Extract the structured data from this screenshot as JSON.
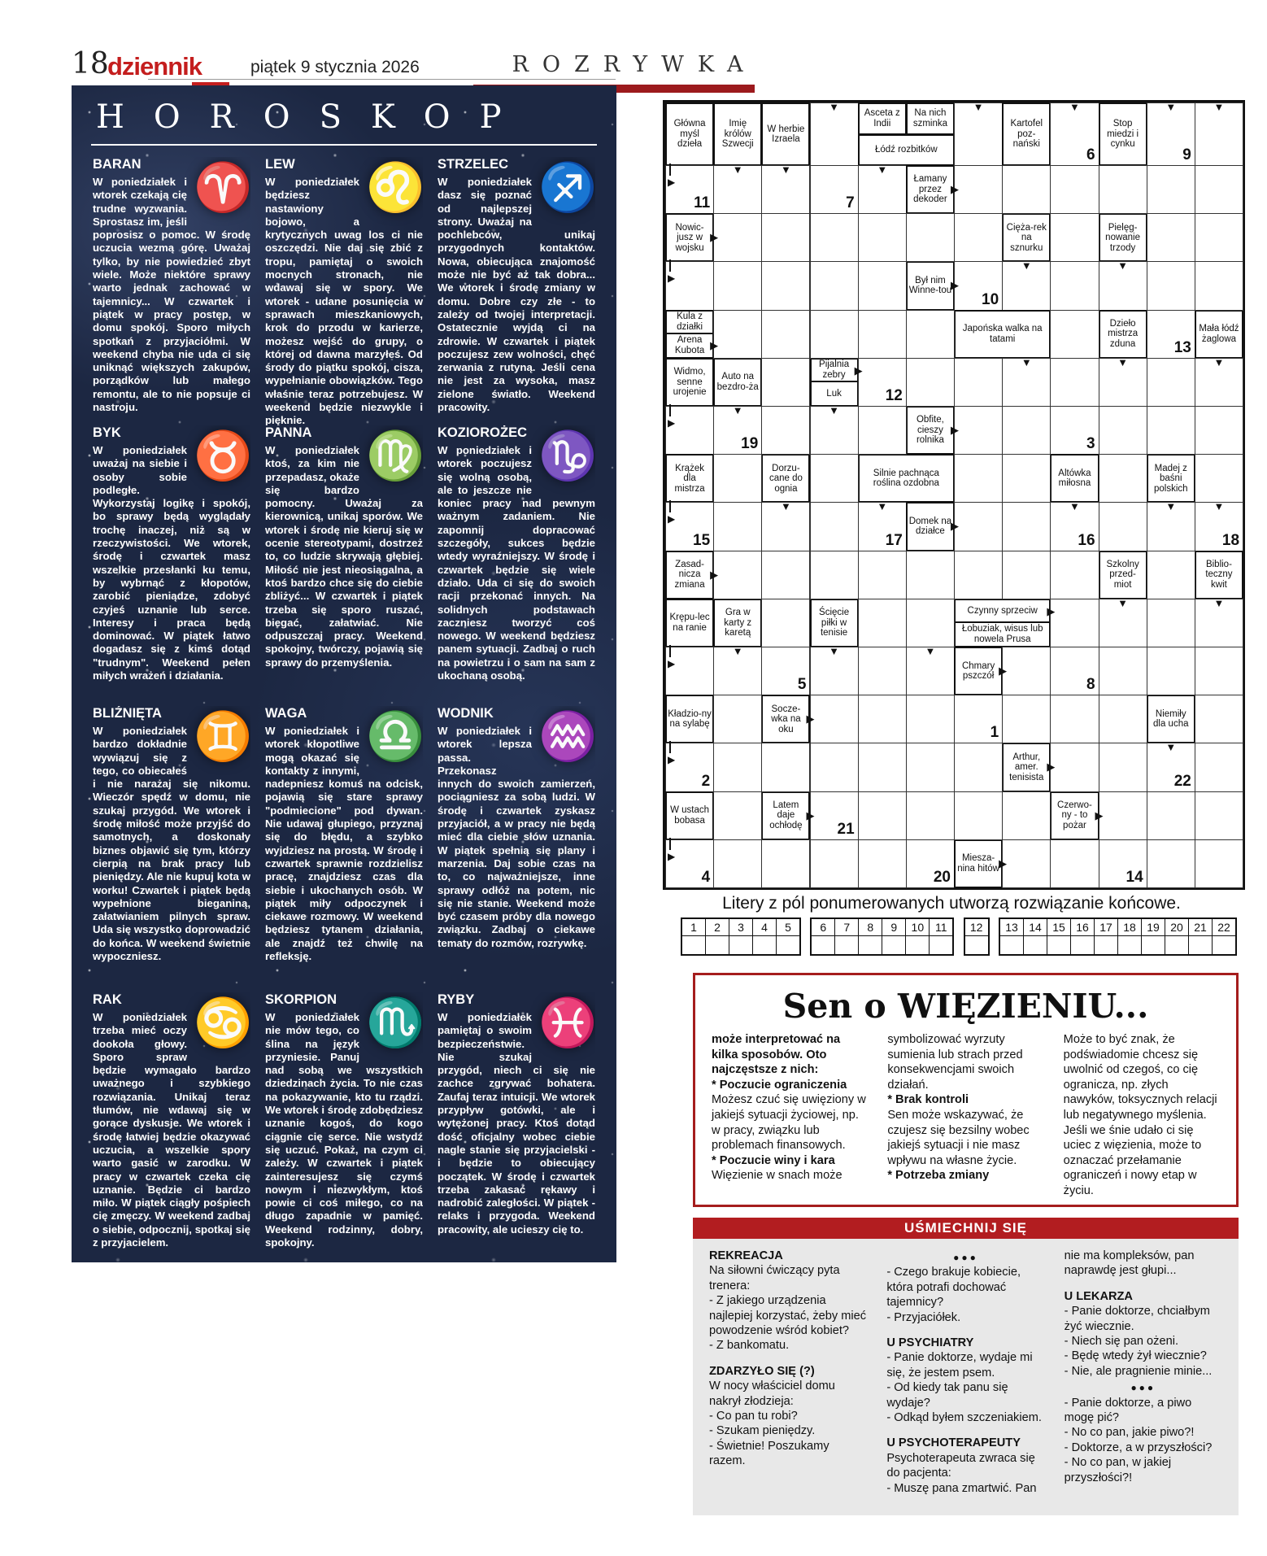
{
  "colors": {
    "accent_red": "#c41e1e",
    "bar_dark_red": "#9c1a1d",
    "jokes_red": "#b21d20",
    "panel_navy": "#1c2742",
    "zodiac_red": "#d93a2f",
    "zodiac_orange": "#f0932e",
    "zodiac_green": "#7fc341",
    "zodiac_blue": "#3fa8e0"
  },
  "header": {
    "page_number": "18",
    "logo": "dziennik",
    "date": "piątek 9 stycznia 2026",
    "section": "ROZRYWKA"
  },
  "horoskop": {
    "title": "HOROSKOP",
    "entries": [
      {
        "name": "BARAN",
        "glyph": "♈",
        "color": "#d93a2f",
        "text": "W poniedziałek i wtorek czekają cię trudne wyzwania. Sprostasz im, jeśli poprosisz o pomoc. W środę uczucia wezmą górę. Uważaj tylko, by nie powiedzieć zbyt wiele. Może niektóre sprawy warto jednak zachować w tajemnicy... W czwartek i piątek w pracy postęp, w domu spokój. Sporo miłych spotkań z przyjaciółmi. W weekend chyba nie uda ci się uniknąć większych zakupów, porządków lub małego remontu, ale to nie popsuje ci nastroju."
      },
      {
        "name": "LEW",
        "glyph": "♌",
        "color": "#d93a2f",
        "text": "W poniedziałek będziesz nastawiony bojowo, a krytycznych uwag los ci nie oszczędzi. Nie daj się zbić z tropu, pamiętaj o swoich mocnych stronach, nie wdawaj się w spory. We wtorek - udane posunięcia w sprawach mieszkaniowych, krok do przodu w karierze, możesz wejść do grupy, o której od dawna marzyłeś. Od środy do piątku spokój, cisza, wypełnianie obowiązków. Tego właśnie teraz potrzebujesz. W weekend będzie niezwykle i pięknie."
      },
      {
        "name": "STRZELEC",
        "glyph": "♐",
        "color": "#d93a2f",
        "text": "W poniedziałek dasz się poznać od najlepszej strony. Uważaj na pochlebców, unikaj przygodnych kontaktów. Nowa, obiecująca znajomość może nie być aż tak dobra... We wtorek i środę zmiany w domu. Dobre czy złe - to zależy od twojej interpretacji. Ostatecznie wyjdą ci na zdrowie. W czwartek i piątek poczujesz zew wolności, chęć zerwania z rutyną. Jeśli cena nie jest za wysoka, masz zielone światło. Weekend pracowity."
      },
      {
        "name": "BYK",
        "glyph": "♉",
        "color": "#f0932e",
        "text": "W poniedziałek uważaj na siebie i osoby sobie podległe. Wykorzystaj logikę i spokój, bo sprawy będą wyglądały trochę inaczej, niż są w rzeczywistości. We wtorek, środę i czwartek masz wszelkie przesłanki ku temu, by wybrnąć z kłopotów, zarobić pieniądze, zdobyć czyjeś uznanie lub serce. Interesy i praca będą dominować. W piątek łatwo dogadasz się z kimś dotąd \"trudnym\". Weekend pełen miłych wrażeń i działania."
      },
      {
        "name": "PANNA",
        "glyph": "♍",
        "color": "#f0932e",
        "text": "W poniedziałek ktoś, za kim nie przepadasz, okaże się bardzo pomocny. Uważaj za kierownicą, unikaj sporów. We wtorek i środę nie kieruj się w ocenie stereotypami, dostrzeż to, co ludzie skrywają głębiej. Miłość nie jest nieosiągalna, a ktoś bardzo chce się do ciebie zbliżyć... W czwartek i piątek trzeba się sporo ruszać, biegać, załatwiać. Nie odpuszczaj pracy. Weekend spokojny, twórczy, pojawią się sprawy do przemyślenia."
      },
      {
        "name": "KOZIOROŻEC",
        "glyph": "♑",
        "color": "#f0932e",
        "text": "W poniedziałek i wtorek poczujesz się wolną osobą, ale to jeszcze nie koniec pracy nad pewnym ważnym zadaniem. Nie zapomnij dopracować szczegóły, sukces będzie wtedy wyraźniejszy. W środę i czwartek będzie się wiele działo. Uda ci się do swoich racji przekonać innych. Na solidnych podstawach zaczniesz tworzyć coś nowego. W weekend będziesz panem sytuacji. Zadbaj o ruch na powietrzu i o sam na sam z ukochaną osobą."
      },
      {
        "name": "BLIŹNIĘTA",
        "glyph": "♊",
        "color": "#7fc341",
        "text": "W poniedziałek bardzo dokładnie wywiązuj się z tego, co obiecałeś i nie narażaj się nikomu. Wieczór spędź w domu, nie szukaj przygód. We wtorek i środę miłość może przyjść do samotnych, a doskonały biznes objawić się tym, którzy cierpią na brak pracy lub pieniędzy. Ale nie kupuj kota w worku! Czwartek i piątek będą wypełnione bieganiną, załatwianiem pilnych spraw. Uda się wszystko doprowadzić do końca. W weekend świetnie wypoczniesz."
      },
      {
        "name": "WAGA",
        "glyph": "♎",
        "color": "#7fc341",
        "text": "W poniedziałek i wtorek kłopotliwe mogą okazać się kontakty z innymi, nadepniesz komuś na odcisk, pojawią się stare sprawy \"podmiecione\" pod dywan. Nie udawaj głupiego, przyznaj się do błędu, a szybko wyjdziesz na prostą. W środę i czwartek sprawnie rozdzielisz pracę, znajdziesz czas dla siebie i ukochanych osób. W piątek miły odpoczynek i ciekawe rozmowy. W weekend będziesz tytanem działania, ale znajdź też chwilę na refleksję."
      },
      {
        "name": "WODNIK",
        "glyph": "♒",
        "color": "#7fc341",
        "text": "W poniedziałek i wtorek lepsza passa. Przekonasz innych do swoich zamierzeń, pociągniesz za sobą ludzi. W środę i czwartek zyskasz przyjaciół, a w pracy nie będą mieć dla ciebie słów uznania. W piątek spełnią się plany i marzenia. Daj sobie czas na to, co najważniejsze, inne sprawy odłóż na potem, nic się nie stanie. Weekend może być czasem próby dla nowego związku. Zadbaj o ciekawe tematy do rozmów, rozrywkę."
      },
      {
        "name": "RAK",
        "glyph": "♋",
        "color": "#3fa8e0",
        "text": "W poniedziałek trzeba mieć oczy dookoła głowy. Sporo spraw będzie wymagało bardzo uważnego i szybkiego rozwiązania. Unikaj teraz tłumów, nie wdawaj się w gorące dyskusje. We wtorek i środę łatwiej będzie okazywać uczucia, a wszelkie spory warto gasić w zarodku. W pracy w czwartek czeka cię uznanie. Będzie ci bardzo miło. W piątek ciągły pośpiech cię zmęczy. W weekend zadbaj o siebie, odpocznij, spotkaj się z przyjacielem."
      },
      {
        "name": "SKORPION",
        "glyph": "♏",
        "color": "#3fa8e0",
        "text": "W poniedziałek nie mów tego, co ślina na język przyniesie. Panuj nad sobą we wszystkich dziedzinach życia. To nie czas na pokazywanie, kto tu rządzi. We wtorek i środę zdobędziesz uznanie kogoś, do kogo ciągnie cię serce. Nie wstydź się uczuć. Pokaż, na czym ci zależy. W czwartek i piątek zainteresujesz się czymś nowym i niezwykłym, ktoś powie ci coś miłego, co na długo zapadnie w pamięć. Weekend rodzinny, dobry, spokojny."
      },
      {
        "name": "RYBY",
        "glyph": "♓",
        "color": "#3fa8e0",
        "text": "W poniedziałek pamiętaj o swoim bezpieczeństwie. Nie szukaj przygód, niech ci się nie zachce zgrywać bohatera. Zaufaj teraz intuicji. We wtorek przypływ gotówki, ale i wytężonej pracy. Ktoś dotąd dość oficjalny wobec ciebie nagle stanie się przyjacielski - i będzie to obiecujący początek. W środę i czwartek trzeba zakasać rękawy i nadrobić zaległości. W piątek - relaks i przygoda. Weekend pracowity, ale ucieszy cię to."
      }
    ]
  },
  "crossword": {
    "cols": 12,
    "rows": 16,
    "solution_note": "Litery z pól ponumerowanych utworzą rozwiązanie końcowe.",
    "strip_groups": [
      [
        1,
        2,
        3,
        4,
        5
      ],
      [
        6,
        7,
        8,
        9,
        10,
        11
      ],
      [
        12
      ],
      [
        13,
        14,
        15,
        16,
        17,
        18,
        19,
        20,
        21,
        22
      ]
    ],
    "cells": [
      {
        "c": 1,
        "r": 1,
        "t": "c",
        "x": "Główna myśl dzieła"
      },
      {
        "c": 2,
        "r": 1,
        "t": "c",
        "x": "Imię królów Szwecji"
      },
      {
        "c": 3,
        "r": 1,
        "t": "c",
        "x": "W herbie Izraela"
      },
      {
        "c": 4,
        "r": 1,
        "t": "e",
        "da": 1
      },
      {
        "c": 5,
        "r": 1,
        "t": "ht",
        "x": "Asceta z Indii"
      },
      {
        "c": 6,
        "r": 1,
        "t": "ht",
        "x": "Na nich szminka"
      },
      {
        "c": 5,
        "r": 1,
        "t": "hb",
        "w": 2,
        "x": "Łódź rozbitków"
      },
      {
        "c": 7,
        "r": 1,
        "t": "e",
        "da": 1
      },
      {
        "c": 8,
        "r": 1,
        "t": "c",
        "x": "Kartofel poz-nański"
      },
      {
        "c": 9,
        "r": 1,
        "t": "e",
        "da": 1,
        "num": 6
      },
      {
        "c": 10,
        "r": 1,
        "t": "c",
        "x": "Stop miedzi i cynku"
      },
      {
        "c": 11,
        "r": 1,
        "t": "e",
        "da": 1,
        "num": 9
      },
      {
        "c": 12,
        "r": 1,
        "t": "e",
        "da": 1
      },
      {
        "c": 1,
        "r": 2,
        "t": "e",
        "ca": 1,
        "num": 11
      },
      {
        "c": 2,
        "r": 2,
        "t": "e",
        "da": 1
      },
      {
        "c": 3,
        "r": 2,
        "t": "e",
        "da": 1
      },
      {
        "c": 4,
        "r": 2,
        "t": "e",
        "num": 7
      },
      {
        "c": 5,
        "r": 2,
        "t": "e",
        "da": 1
      },
      {
        "c": 6,
        "r": 2,
        "t": "c",
        "x": "Łamany przez dekoder",
        "ra": 1
      },
      {
        "c": 1,
        "r": 3,
        "t": "c",
        "x": "Nowic-jusz w wojsku",
        "ra": 1
      },
      {
        "c": 8,
        "r": 3,
        "t": "c",
        "x": "Cięża-rek na sznurku"
      },
      {
        "c": 10,
        "r": 3,
        "t": "c",
        "x": "Pielęg-nowanie trzody"
      },
      {
        "c": 1,
        "r": 4,
        "t": "e",
        "ca": 1
      },
      {
        "c": 6,
        "r": 4,
        "t": "c",
        "x": "Był nim Winne-tou",
        "ra": 1
      },
      {
        "c": 7,
        "r": 4,
        "t": "e",
        "num": 10
      },
      {
        "c": 8,
        "r": 4,
        "t": "e",
        "da": 1
      },
      {
        "c": 10,
        "r": 4,
        "t": "e",
        "da": 1
      },
      {
        "c": 1,
        "r": 5,
        "t": "c2",
        "x": "Kula z działki",
        "xb": "Arena Kubota",
        "ra": "bottom"
      },
      {
        "c": 7,
        "r": 5,
        "t": "c",
        "w": 2,
        "x": "Japońska walka na tatami"
      },
      {
        "c": 10,
        "r": 5,
        "t": "c",
        "x": "Dzieło mistrza zduna"
      },
      {
        "c": 11,
        "r": 5,
        "t": "e",
        "num": 13
      },
      {
        "c": 12,
        "r": 5,
        "t": "c",
        "x": "Mała łódź żaglowa"
      },
      {
        "c": 1,
        "r": 6,
        "t": "c",
        "x": "Widmo, senne urojenie"
      },
      {
        "c": 2,
        "r": 6,
        "t": "c",
        "x": "Auto na bezdro-ża"
      },
      {
        "c": 4,
        "r": 6,
        "t": "c2",
        "x": "Pijalnia zebry",
        "xb": "Luk",
        "ra": "top"
      },
      {
        "c": 5,
        "r": 6,
        "t": "e",
        "num": 12
      },
      {
        "c": 8,
        "r": 6,
        "t": "e",
        "da": 1
      },
      {
        "c": 10,
        "r": 6,
        "t": "e",
        "da": 1
      },
      {
        "c": 12,
        "r": 6,
        "t": "e",
        "da": 1
      },
      {
        "c": 1,
        "r": 7,
        "t": "e",
        "ca": 1
      },
      {
        "c": 2,
        "r": 7,
        "t": "e",
        "da": 1,
        "num": 19
      },
      {
        "c": 4,
        "r": 7,
        "t": "e",
        "da": 1
      },
      {
        "c": 6,
        "r": 7,
        "t": "c",
        "x": "Obfite, cieszy rolnika",
        "ra": 1
      },
      {
        "c": 9,
        "r": 7,
        "t": "e",
        "num": 3
      },
      {
        "c": 1,
        "r": 8,
        "t": "c",
        "x": "Krążek dla mistrza"
      },
      {
        "c": 3,
        "r": 8,
        "t": "c",
        "x": "Dorzu-cane do ognia"
      },
      {
        "c": 5,
        "r": 8,
        "t": "c",
        "w": 2,
        "x": "Silnie pachnąca roślina ozdobna"
      },
      {
        "c": 9,
        "r": 8,
        "t": "c",
        "x": "Altówka miłosna"
      },
      {
        "c": 11,
        "r": 8,
        "t": "c",
        "x": "Madej z baśni polskich"
      },
      {
        "c": 1,
        "r": 9,
        "t": "e",
        "ca": 1,
        "num": 15
      },
      {
        "c": 3,
        "r": 9,
        "t": "e",
        "da": 1
      },
      {
        "c": 5,
        "r": 9,
        "t": "e",
        "da": 1,
        "num": 17
      },
      {
        "c": 6,
        "r": 9,
        "t": "c",
        "x": "Domek na działce",
        "ra": 1
      },
      {
        "c": 9,
        "r": 9,
        "t": "e",
        "da": 1,
        "num": 16
      },
      {
        "c": 11,
        "r": 9,
        "t": "e",
        "da": 1
      },
      {
        "c": 12,
        "r": 9,
        "t": "e",
        "da": 1,
        "num": 18
      },
      {
        "c": 1,
        "r": 10,
        "t": "c",
        "x": "Zasad-nicza zmiana",
        "ra": 1
      },
      {
        "c": 10,
        "r": 10,
        "t": "c",
        "x": "Szkolny przed-miot"
      },
      {
        "c": 12,
        "r": 10,
        "t": "c",
        "x": "Biblio-teczny kwit"
      },
      {
        "c": 1,
        "r": 11,
        "t": "c",
        "x": "Krępu-lec na ranie"
      },
      {
        "c": 2,
        "r": 11,
        "t": "c",
        "x": "Gra w karty z karetą"
      },
      {
        "c": 4,
        "r": 11,
        "t": "c",
        "x": "Ścięcie piłki w tenisie"
      },
      {
        "c": 7,
        "r": 11,
        "t": "c2",
        "w": 2,
        "x": "Czynny sprzeciw",
        "xb": "Łobuziak, wisus lub nowela Prusa",
        "ra": "top"
      },
      {
        "c": 10,
        "r": 11,
        "t": "e",
        "da": 1
      },
      {
        "c": 12,
        "r": 11,
        "t": "e",
        "da": 1
      },
      {
        "c": 1,
        "r": 12,
        "t": "e",
        "ca": 1
      },
      {
        "c": 2,
        "r": 12,
        "t": "e",
        "da": 1
      },
      {
        "c": 3,
        "r": 12,
        "t": "e",
        "num": 5
      },
      {
        "c": 4,
        "r": 12,
        "t": "e",
        "da": 1
      },
      {
        "c": 6,
        "r": 12,
        "t": "e",
        "da": 1
      },
      {
        "c": 7,
        "r": 12,
        "t": "c",
        "x": "Chmary pszczół",
        "ra": 1
      },
      {
        "c": 9,
        "r": 12,
        "t": "e",
        "num": 8
      },
      {
        "c": 1,
        "r": 13,
        "t": "c",
        "x": "Kładzio-ny na sylabę"
      },
      {
        "c": 3,
        "r": 13,
        "t": "c",
        "x": "Socze-wka na oku",
        "ra": 1
      },
      {
        "c": 7,
        "r": 13,
        "t": "e",
        "num": 1
      },
      {
        "c": 11,
        "r": 13,
        "t": "c",
        "x": "Niemiły dla ucha"
      },
      {
        "c": 1,
        "r": 14,
        "t": "e",
        "ca": 1,
        "num": 2
      },
      {
        "c": 8,
        "r": 14,
        "t": "c",
        "x": "Arthur, amer. tenisista",
        "ra": 1
      },
      {
        "c": 11,
        "r": 14,
        "t": "e",
        "da": 1,
        "num": 22
      },
      {
        "c": 1,
        "r": 15,
        "t": "c",
        "x": "W ustach bobasa"
      },
      {
        "c": 3,
        "r": 15,
        "t": "c",
        "x": "Latem daje ochłodę",
        "ra": 1
      },
      {
        "c": 4,
        "r": 15,
        "t": "e",
        "num": 21
      },
      {
        "c": 9,
        "r": 15,
        "t": "c",
        "x": "Czerwo-ny - to pożar",
        "ra": 1
      },
      {
        "c": 1,
        "r": 16,
        "t": "e",
        "ca": 1,
        "num": 4
      },
      {
        "c": 6,
        "r": 16,
        "t": "e",
        "num": 20
      },
      {
        "c": 7,
        "r": 16,
        "t": "c",
        "x": "Miesza-nina hitów",
        "ra": 1
      },
      {
        "c": 10,
        "r": 16,
        "t": "e",
        "num": 14
      }
    ]
  },
  "dream": {
    "title": "Sen o WIĘZIENIU...",
    "columns": [
      [
        {
          "b": 1,
          "x": "może interpretować na kilka sposobów. Oto najczęstsze z nich:"
        },
        {
          "b": 1,
          "x": "* Poczucie ograniczenia"
        },
        {
          "b": 0,
          "x": "Możesz czuć się uwięziony w jakiejś sytuacji życiowej, np. w pracy, związku lub problemach finansowych."
        },
        {
          "b": 1,
          "x": "* Poczucie winy i kara"
        },
        {
          "b": 0,
          "x": "Więzienie w snach może"
        }
      ],
      [
        {
          "b": 0,
          "x": "symbolizować wyrzuty sumienia lub strach przed konsekwencjami swoich działań."
        },
        {
          "b": 1,
          "x": "* Brak kontroli"
        },
        {
          "b": 0,
          "x": "Sen może wskazywać, że czujesz się bezsilny wobec jakiejś sytuacji i nie masz wpływu na własne życie."
        },
        {
          "b": 1,
          "x": "* Potrzeba zmiany"
        }
      ],
      [
        {
          "b": 0,
          "x": "Może to być znak, że podświadomie chcesz się uwolnić od czegoś, co cię ogranicza, np. złych nawyków, toksycznych relacji lub negatywnego myślenia. Jeśli we śnie udało ci się uciec z więzienia, może to oznaczać przełamanie ograniczeń i nowy etap w życiu."
        }
      ]
    ]
  },
  "jokes": {
    "header": "UŚMIECHNIJ SIĘ",
    "columns": [
      [
        {
          "h": 1,
          "x": "REKREACJA"
        },
        {
          "x": "Na siłowni ćwiczący pyta trenera:"
        },
        {
          "x": "- Z jakiego urządzenia najlepiej korzystać, żeby mieć powodzenie wśród kobiet?"
        },
        {
          "x": "- Z bankomatu."
        },
        {
          "h": 1,
          "x": "ZDARZYŁO SIĘ (?)"
        },
        {
          "x": "W nocy właściciel domu nakrył złodzieja:"
        },
        {
          "x": "- Co pan tu robi?"
        },
        {
          "x": "- Szukam pieniędzy."
        },
        {
          "x": "- Świetnie! Poszukamy razem."
        }
      ],
      [
        {
          "d": 1,
          "x": "●●●"
        },
        {
          "x": "- Czego brakuje kobiecie, która potrafi dochować tajemnicy?"
        },
        {
          "x": "- Przyjaciółek."
        },
        {
          "h": 1,
          "x": "U PSYCHIATRY"
        },
        {
          "x": "- Panie doktorze, wydaje mi się, że jestem psem."
        },
        {
          "x": "- Od kiedy tak panu się wydaje?"
        },
        {
          "x": "- Odkąd byłem szczeniakiem."
        },
        {
          "h": 1,
          "x": "U PSYCHOTERAPEUTY"
        },
        {
          "x": "Psychoterapeuta zwraca się do pacjenta:"
        },
        {
          "x": "- Muszę pana zmartwić. Pan"
        }
      ],
      [
        {
          "x": "nie ma kompleksów, pan naprawdę jest głupi..."
        },
        {
          "h": 1,
          "x": "U LEKARZA"
        },
        {
          "x": "- Panie doktorze, chciałbym żyć wiecznie."
        },
        {
          "x": "- Niech się pan ożeni."
        },
        {
          "x": "- Będę wtedy żył wiecznie?"
        },
        {
          "x": "- Nie, ale pragnienie minie..."
        },
        {
          "d": 1,
          "x": "●●●"
        },
        {
          "x": "- Panie doktorze, a piwo mogę pić?"
        },
        {
          "x": "- No co pan, jakie piwo?!"
        },
        {
          "x": "- Doktorze, a w przyszłości?"
        },
        {
          "x": "- No co pan, w jakiej przyszłości?!"
        }
      ]
    ]
  }
}
